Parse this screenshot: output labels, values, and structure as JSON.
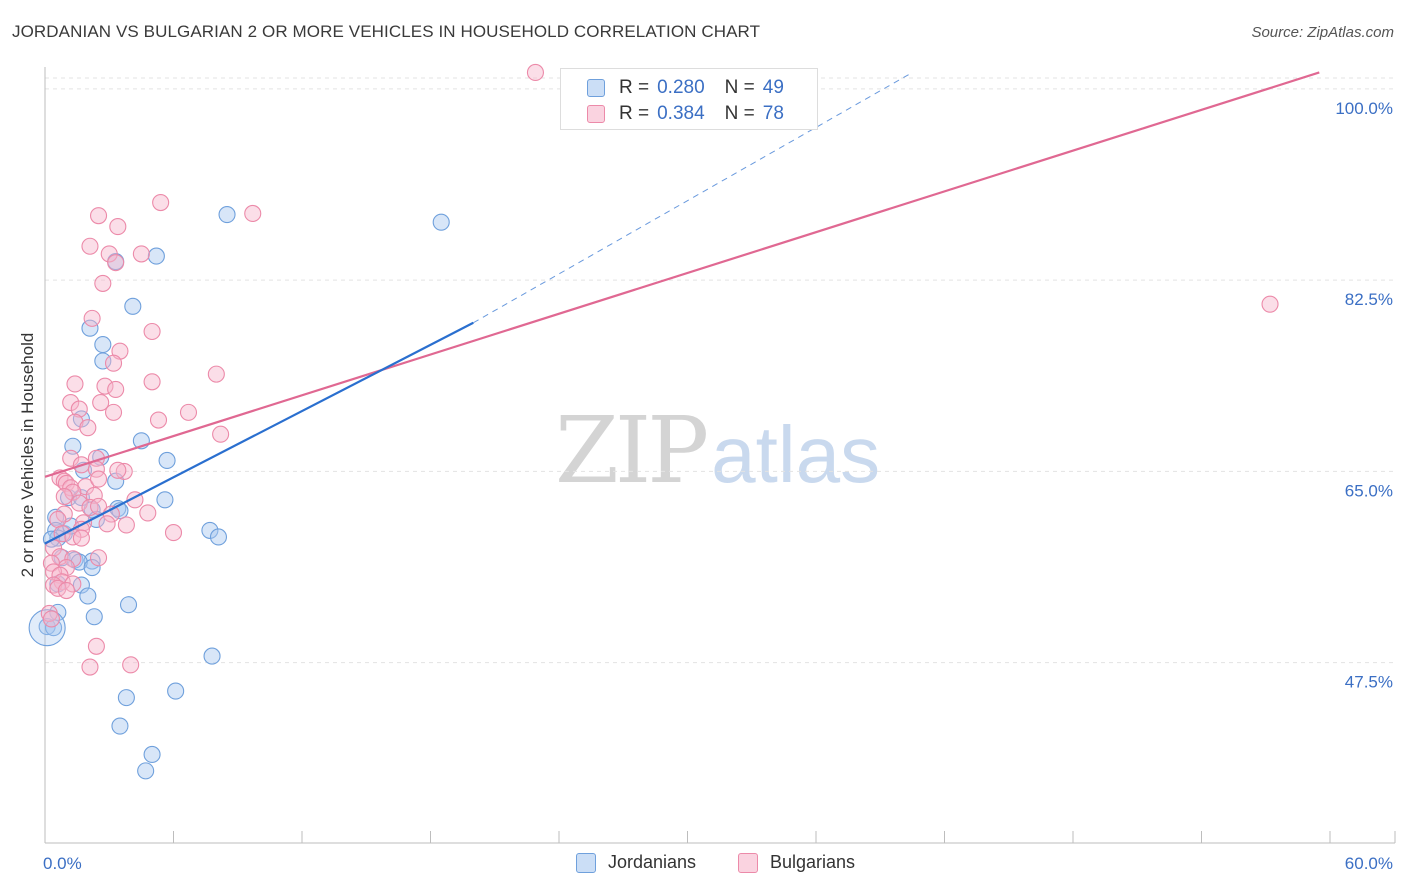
{
  "title": "JORDANIAN VS BULGARIAN 2 OR MORE VEHICLES IN HOUSEHOLD CORRELATION CHART",
  "source": "Source: ZipAtlas.com",
  "watermark": {
    "zip": "ZIP",
    "atlas": "atlas"
  },
  "legend": {
    "rows": [
      {
        "r_label": "R =",
        "r_value": "0.280",
        "n_label": "N =",
        "n_value": "49"
      },
      {
        "r_label": "R =",
        "r_value": "0.384",
        "n_label": "N =",
        "n_value": "78"
      }
    ]
  },
  "bottom_legend": {
    "items": [
      "Jordanians",
      "Bulgarians"
    ]
  },
  "colors": {
    "jordanian_fill": "#a9c8f0",
    "jordanian_stroke": "#6fa0dc",
    "jordanian_line": "#2a6fcf",
    "bulgarian_fill": "#f7b6cb",
    "bulgarian_stroke": "#ec8aa9",
    "bulgarian_line": "#e06892",
    "tick_label": "#3b6fc4",
    "grid": "#e3e3e3"
  },
  "chart_data": {
    "type": "scatter",
    "title": "JORDANIAN VS BULGARIAN 2 OR MORE VEHICLES IN HOUSEHOLD CORRELATION CHART",
    "xlabel": "",
    "ylabel": "2 or more Vehicles in Household",
    "xlim": [
      0,
      60
    ],
    "ylim": [
      31,
      102
    ],
    "x_tick_labels": [
      {
        "value": 0,
        "label": "0.0%"
      },
      {
        "value": 60,
        "label": "60.0%"
      }
    ],
    "x_minor_ticks": [
      6,
      12,
      18,
      24,
      30,
      36,
      42,
      48,
      54,
      60
    ],
    "y_ticks": [
      {
        "value": 100,
        "label": "100.0%"
      },
      {
        "value": 82.5,
        "label": "82.5%"
      },
      {
        "value": 65,
        "label": "65.0%"
      },
      {
        "value": 47.5,
        "label": "47.5%"
      }
    ],
    "series": [
      {
        "name": "Jordanians",
        "color": "#a9c8f0",
        "points": [
          [
            8.5,
            88.5
          ],
          [
            18.5,
            87.8
          ],
          [
            5.2,
            84.7
          ],
          [
            3.3,
            84.2
          ],
          [
            4.1,
            80.1
          ],
          [
            2.1,
            78.1
          ],
          [
            2.7,
            76.6
          ],
          [
            2.7,
            75.1
          ],
          [
            1.7,
            69.8
          ],
          [
            4.5,
            67.8
          ],
          [
            1.3,
            67.3
          ],
          [
            2.6,
            66.3
          ],
          [
            5.7,
            66.0
          ],
          [
            1.8,
            65.1
          ],
          [
            1.1,
            62.6
          ],
          [
            1.7,
            62.6
          ],
          [
            5.6,
            62.4
          ],
          [
            2.2,
            61.5
          ],
          [
            3.4,
            61.6
          ],
          [
            3.5,
            61.4
          ],
          [
            2.4,
            60.6
          ],
          [
            0.5,
            60.8
          ],
          [
            0.5,
            59.6
          ],
          [
            0.9,
            59.3
          ],
          [
            0.6,
            58.9
          ],
          [
            0.3,
            58.8
          ],
          [
            7.7,
            59.6
          ],
          [
            8.1,
            59.0
          ],
          [
            0.8,
            57.1
          ],
          [
            1.4,
            56.9
          ],
          [
            2.2,
            56.8
          ],
          [
            1.6,
            56.7
          ],
          [
            2.2,
            56.2
          ],
          [
            1.7,
            54.6
          ],
          [
            0.6,
            54.7
          ],
          [
            2.0,
            53.6
          ],
          [
            3.9,
            52.8
          ],
          [
            2.3,
            51.7
          ],
          [
            0.1,
            50.8
          ],
          [
            0.4,
            50.7
          ],
          [
            7.8,
            48.1
          ],
          [
            6.1,
            44.9
          ],
          [
            3.8,
            44.3
          ],
          [
            3.5,
            41.7
          ],
          [
            5.0,
            39.1
          ],
          [
            4.7,
            37.6
          ],
          [
            0.6,
            52.1
          ],
          [
            3.3,
            64.1
          ],
          [
            1.2,
            60.0
          ]
        ],
        "trendline": {
          "x": [
            0,
            20
          ],
          "y": [
            58.4,
            78.6
          ]
        },
        "trendline_dashed": {
          "x": [
            20,
            40.5
          ],
          "y": [
            78.6,
            101.5
          ]
        }
      },
      {
        "name": "Bulgarians",
        "color": "#f7b6cb",
        "points": [
          [
            22.9,
            101.5
          ],
          [
            5.4,
            89.6
          ],
          [
            2.5,
            88.4
          ],
          [
            9.7,
            88.6
          ],
          [
            3.4,
            87.4
          ],
          [
            2.1,
            85.6
          ],
          [
            3.0,
            84.9
          ],
          [
            4.5,
            84.9
          ],
          [
            3.3,
            84.1
          ],
          [
            2.7,
            82.2
          ],
          [
            57.2,
            80.3
          ],
          [
            2.2,
            79.0
          ],
          [
            5.0,
            77.8
          ],
          [
            3.5,
            76.0
          ],
          [
            3.2,
            74.9
          ],
          [
            8.0,
            73.9
          ],
          [
            5.0,
            73.2
          ],
          [
            1.4,
            73.0
          ],
          [
            2.8,
            72.8
          ],
          [
            3.3,
            72.5
          ],
          [
            1.2,
            71.3
          ],
          [
            2.6,
            71.3
          ],
          [
            1.6,
            70.7
          ],
          [
            3.2,
            70.4
          ],
          [
            6.7,
            70.4
          ],
          [
            5.3,
            69.7
          ],
          [
            1.4,
            69.5
          ],
          [
            2.0,
            69.0
          ],
          [
            8.2,
            68.4
          ],
          [
            1.2,
            66.2
          ],
          [
            2.4,
            66.2
          ],
          [
            1.7,
            65.6
          ],
          [
            2.4,
            65.2
          ],
          [
            3.7,
            65.0
          ],
          [
            3.4,
            65.1
          ],
          [
            0.7,
            64.4
          ],
          [
            0.9,
            64.1
          ],
          [
            1.0,
            63.9
          ],
          [
            1.2,
            63.5
          ],
          [
            1.9,
            63.6
          ],
          [
            1.3,
            63.1
          ],
          [
            0.9,
            62.7
          ],
          [
            2.3,
            62.8
          ],
          [
            1.6,
            62.1
          ],
          [
            4.2,
            62.4
          ],
          [
            2.1,
            61.7
          ],
          [
            2.5,
            61.8
          ],
          [
            0.9,
            61.1
          ],
          [
            3.1,
            61.1
          ],
          [
            4.8,
            61.2
          ],
          [
            0.6,
            60.6
          ],
          [
            1.8,
            60.3
          ],
          [
            3.8,
            60.1
          ],
          [
            2.9,
            60.2
          ],
          [
            1.7,
            59.7
          ],
          [
            0.8,
            59.3
          ],
          [
            1.3,
            59.0
          ],
          [
            6.0,
            59.4
          ],
          [
            1.7,
            58.9
          ],
          [
            0.4,
            58.0
          ],
          [
            0.7,
            57.2
          ],
          [
            1.3,
            57.0
          ],
          [
            2.5,
            57.1
          ],
          [
            0.3,
            56.6
          ],
          [
            1.0,
            56.2
          ],
          [
            0.4,
            55.8
          ],
          [
            0.7,
            55.5
          ],
          [
            0.8,
            54.9
          ],
          [
            0.4,
            54.6
          ],
          [
            1.3,
            54.7
          ],
          [
            0.6,
            54.3
          ],
          [
            1.0,
            54.1
          ],
          [
            0.2,
            52.0
          ],
          [
            0.3,
            51.5
          ],
          [
            2.4,
            49.0
          ],
          [
            4.0,
            47.3
          ],
          [
            2.1,
            47.1
          ],
          [
            2.5,
            64.3
          ]
        ],
        "trendline": {
          "x": [
            0,
            59.5
          ],
          "y": [
            64.5,
            101.5
          ]
        }
      }
    ]
  }
}
